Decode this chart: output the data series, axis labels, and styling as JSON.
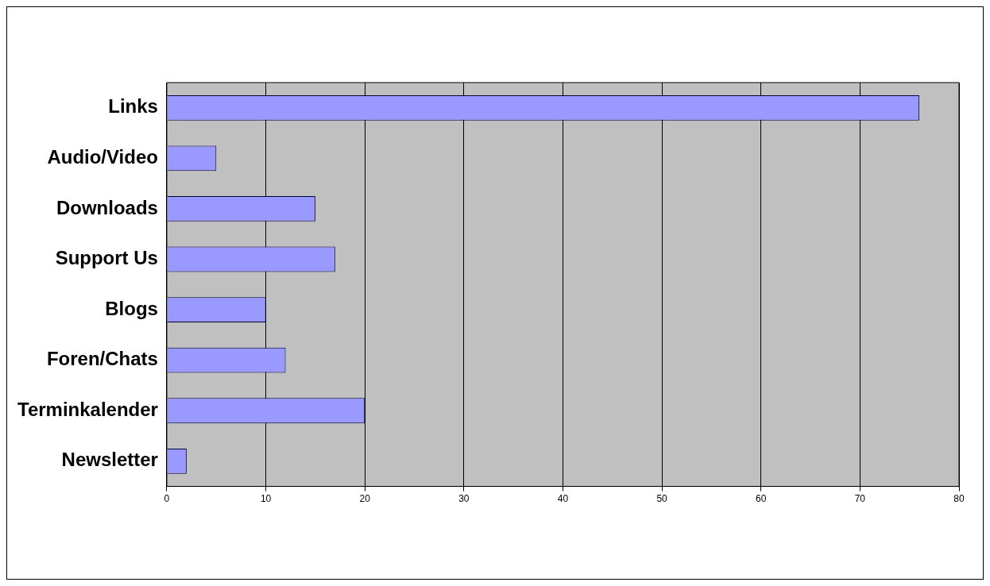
{
  "chart_data": {
    "type": "bar",
    "orientation": "horizontal",
    "categories": [
      "Links",
      "Audio/Video",
      "Downloads",
      "Support Us",
      "Blogs",
      "Foren/Chats",
      "Terminkalender",
      "Newsletter"
    ],
    "values": [
      76,
      5,
      15,
      17,
      10,
      12,
      20,
      2
    ],
    "color": "#9999ff",
    "xlim": [
      0,
      80
    ],
    "xticks": [
      0,
      10,
      20,
      30,
      40,
      50,
      60,
      70,
      80
    ],
    "grid": "x",
    "legend": false
  }
}
